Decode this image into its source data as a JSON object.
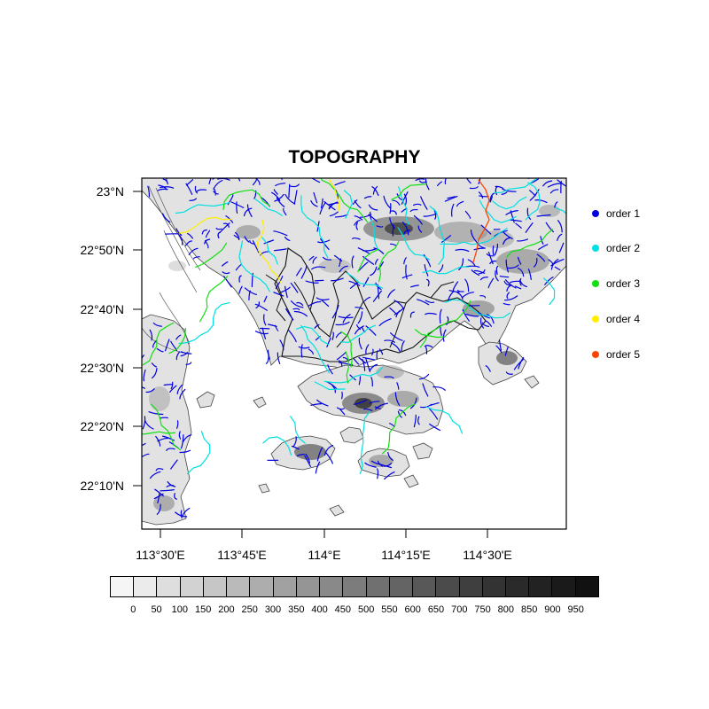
{
  "title": "TOPOGRAPHY",
  "lat_labels": [
    "23°N",
    "22°50'N",
    "22°40'N",
    "22°30'N",
    "22°20'N",
    "22°10'N"
  ],
  "lon_labels": [
    "113°30'E",
    "113°45'E",
    "114°E",
    "114°15'E",
    "114°30'E"
  ],
  "legend": [
    {
      "label": "order 1",
      "color": "#0000e0"
    },
    {
      "label": "order 2",
      "color": "#00e0e0"
    },
    {
      "label": "order 3",
      "color": "#10e010"
    },
    {
      "label": "order 4",
      "color": "#ffee00"
    },
    {
      "label": "order 5",
      "color": "#ff4400"
    }
  ],
  "colorbar": {
    "labels": [
      "0",
      "50",
      "100",
      "150",
      "200",
      "250",
      "300",
      "350",
      "400",
      "450",
      "500",
      "550",
      "600",
      "650",
      "700",
      "750",
      "800",
      "850",
      "900",
      "950"
    ],
    "colors": [
      "#f5f5f5",
      "#ebebeb",
      "#dedede",
      "#d2d2d2",
      "#c6c6c6",
      "#bababa",
      "#adadad",
      "#a1a1a1",
      "#959595",
      "#898989",
      "#7c7c7c",
      "#707070",
      "#646464",
      "#585858",
      "#4b4b4b",
      "#3f3f3f",
      "#333333",
      "#2a2a2a",
      "#222222",
      "#1a1a1a",
      "#111111"
    ]
  }
}
